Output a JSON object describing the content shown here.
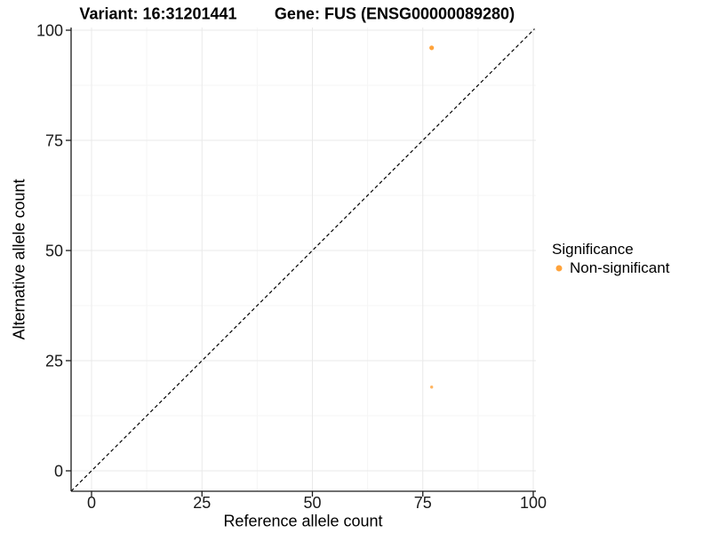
{
  "chart_data": {
    "type": "scatter",
    "title_left": "Variant: 16:31201441",
    "title_right": "Gene: FUS (ENSG00000089280)",
    "xlabel": "Reference allele count",
    "ylabel": "Alternative allele count",
    "x_ticks": [
      0,
      25,
      50,
      75,
      100
    ],
    "y_ticks": [
      0,
      25,
      50,
      75,
      100
    ],
    "x_tick_labels": [
      "0",
      "25",
      "50",
      "75",
      "100"
    ],
    "y_tick_labels": [
      "0",
      "25",
      "50",
      "75",
      "100"
    ],
    "xlim": [
      -4.6,
      100.3
    ],
    "ylim": [
      -4.6,
      100.3
    ],
    "grid": {
      "major": true,
      "minor": true
    },
    "reference_line": {
      "type": "identity",
      "style": "dashed",
      "x1": -4.6,
      "y1": -4.6,
      "x2": 100.3,
      "y2": 100.3
    },
    "series": [
      {
        "name": "Non-significant",
        "color": "#FFA33B",
        "points": [
          {
            "x": 77,
            "y": 96,
            "size": 2.6,
            "opacity": 1
          },
          {
            "x": 77,
            "y": 19,
            "size": 1.7,
            "opacity": 0.8
          }
        ]
      }
    ],
    "legend": {
      "title": "Significance",
      "position": "right",
      "items": [
        {
          "label": "Non-significant",
          "color": "#FFA33B"
        }
      ]
    },
    "colors": {
      "axis": "#1a1a1a",
      "tick_label": "#1a1a1a",
      "grid_major": "#e9e9e9",
      "grid_minor": "#f5f5f5",
      "reference_line": "#000000",
      "background": "#ffffff"
    }
  }
}
